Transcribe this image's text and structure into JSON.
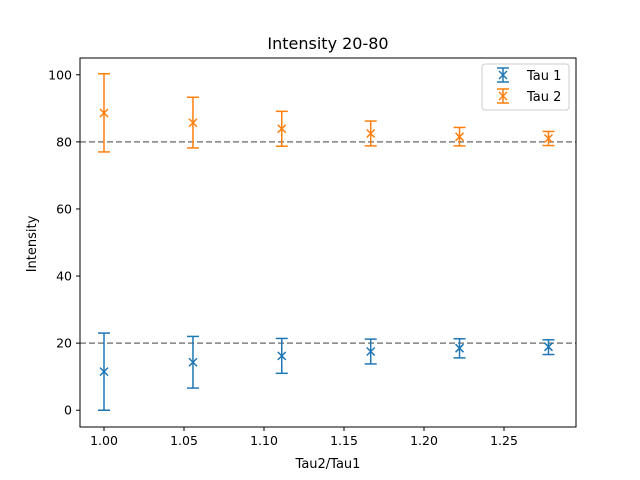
{
  "chart_data": {
    "type": "scatter",
    "title": "Intensity 20-80",
    "xlabel": "Tau2/Tau1",
    "ylabel": "Intensity",
    "xlim": [
      0.985,
      1.295
    ],
    "ylim": [
      -5,
      105
    ],
    "x_ticks": [
      "1.00",
      "1.05",
      "1.10",
      "1.15",
      "1.20",
      "1.25"
    ],
    "y_ticks": [
      "0",
      "20",
      "40",
      "60",
      "80",
      "100"
    ],
    "grid": false,
    "legend_position": "upper right",
    "reference_lines": [
      20,
      80
    ],
    "reference_line_style": "dashed gray",
    "marker": "x",
    "x": [
      1.0,
      1.0556,
      1.1111,
      1.1667,
      1.2222,
      1.2778
    ],
    "series": [
      {
        "name": "Tau 1",
        "color": "#1f77b4",
        "values": [
          11.5,
          14.3,
          16.2,
          17.5,
          18.5,
          18.9
        ],
        "error_low": [
          0.0,
          6.6,
          11.0,
          13.8,
          15.6,
          16.6
        ],
        "error_high": [
          23.0,
          22.0,
          21.4,
          21.2,
          21.3,
          21.0
        ]
      },
      {
        "name": "Tau 2",
        "color": "#ff7f0e",
        "values": [
          88.6,
          85.7,
          83.9,
          82.5,
          81.5,
          81.0
        ],
        "error_low": [
          77.0,
          78.2,
          78.7,
          78.8,
          78.8,
          78.9
        ],
        "error_high": [
          100.3,
          93.3,
          89.1,
          86.2,
          84.3,
          83.1
        ]
      }
    ]
  }
}
